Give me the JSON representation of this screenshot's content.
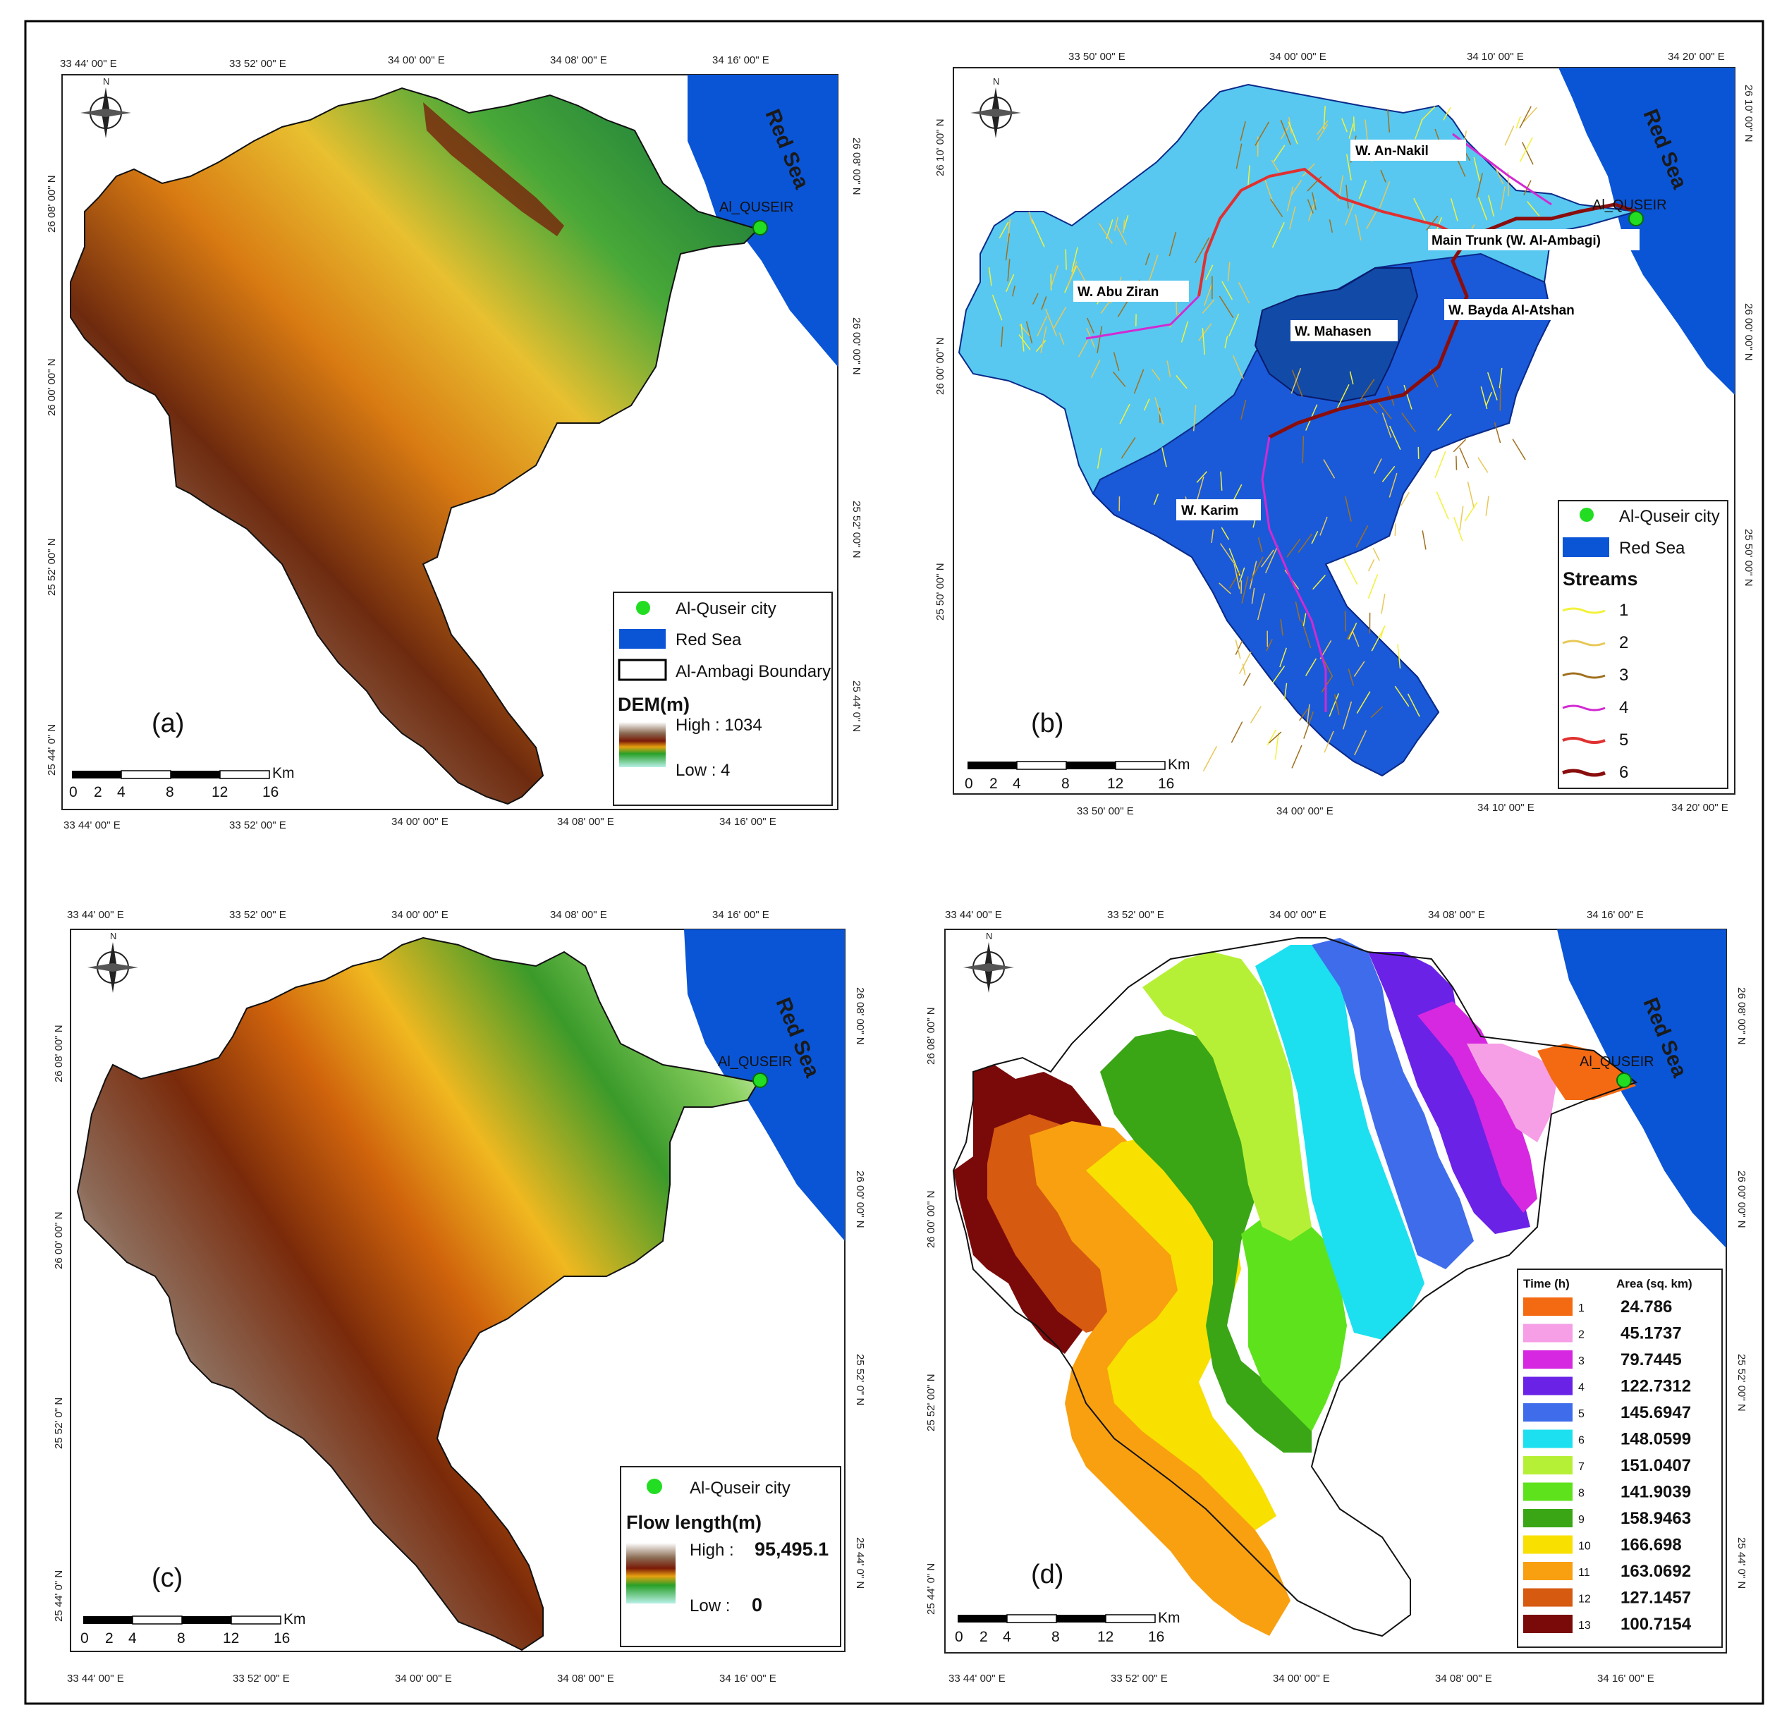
{
  "panels": {
    "a": {
      "letter": "(a)",
      "city_label": "Al_QUSEIR",
      "sea_label": "Red Sea",
      "legend": {
        "city": "Al-Quseir city",
        "sea": "Red Sea",
        "boundary": "Al-Ambagi Boundary",
        "ramp_title": "DEM(m)",
        "high": "High : 1034",
        "low": "Low : 4"
      },
      "top_ticks": [
        "33 44' 00\" E",
        "33 52' 00\" E",
        "34 00' 00\" E",
        "34 08' 00\" E",
        "34 16' 00\" E"
      ],
      "bottom_ticks": [
        "33 44' 00\" E",
        "33 52' 00\" E",
        "34 00' 00\" E",
        "34 08' 00\" E",
        "34 16' 00\" E"
      ],
      "left_ticks": [
        "26 08' 00\" N",
        "26 00' 00\" N",
        "25 52' 00\" N",
        "25 44' 0\" N"
      ],
      "right_ticks": [
        "26 08' 00\" N",
        "26 00' 00\" N",
        "25 52' 00\" N",
        "25 44' 0\" N"
      ]
    },
    "b": {
      "letter": "(b)",
      "city_label": "Al_QUSEIR",
      "sea_label": "Red Sea",
      "wadi_labels": [
        "W. An-Nakil",
        "Main Trunk (W. Al-Ambagi)",
        "W. Abu Ziran",
        "W. Bayda Al-Atshan",
        "W. Mahasen",
        "W. Karim"
      ],
      "legend": {
        "city": "Al-Quseir city",
        "sea": "Red Sea",
        "streams_title": "Streams",
        "orders": [
          "1",
          "2",
          "3",
          "4",
          "5",
          "6"
        ]
      },
      "top_ticks": [
        "33 50' 00\" E",
        "34 00' 00\" E",
        "34 10' 00\" E",
        "34 20' 00\" E"
      ],
      "bottom_ticks": [
        "33 50' 00\" E",
        "34 00' 00\" E",
        "34 10' 00\" E",
        "34 20' 00\" E"
      ],
      "left_ticks": [
        "26 10' 00\" N",
        "26 00' 00\" N",
        "25 50' 00\" N"
      ],
      "right_ticks": [
        "26 10' 00\" N",
        "26 00' 00\" N",
        "25 50' 00\" N"
      ]
    },
    "c": {
      "letter": "(c)",
      "city_label": "Al_QUSEIR",
      "sea_label": "Red Sea",
      "legend": {
        "city": "Al-Quseir city",
        "ramp_title": "Flow length(m)",
        "high_label": "High :",
        "high_value": "95,495.1",
        "low_label": "Low :",
        "low_value": "0"
      },
      "top_ticks": [
        "33 44' 00\" E",
        "33 52' 00\" E",
        "34 00' 00\" E",
        "34 08' 00\" E",
        "34 16' 00\" E"
      ],
      "bottom_ticks": [
        "33 44' 00\" E",
        "33 52' 00\" E",
        "34 00' 00\" E",
        "34 08' 00\" E",
        "34 16' 00\" E"
      ],
      "left_ticks": [
        "26 08' 00\" N",
        "26 00' 00\" N",
        "25 52' 0\" N",
        "25 44' 0\" N"
      ],
      "right_ticks": [
        "26 08' 00\" N",
        "26 00' 00\" N",
        "25 52' 0\" N",
        "25 44' 0\" N"
      ]
    },
    "d": {
      "letter": "(d)",
      "city_label": "Al_QUSEIR",
      "sea_label": "Red Sea",
      "legend": {
        "time_header": "Time (h)",
        "area_header": "Area (sq. km)",
        "rows": [
          {
            "time": "1",
            "area": "24.786",
            "color": "#f46a12"
          },
          {
            "time": "2",
            "area": "45.1737",
            "color": "#f69ee6"
          },
          {
            "time": "3",
            "area": "79.7445",
            "color": "#d628e0"
          },
          {
            "time": "4",
            "area": "122.7312",
            "color": "#6a22e6"
          },
          {
            "time": "5",
            "area": "145.6947",
            "color": "#3f6cea"
          },
          {
            "time": "6",
            "area": "148.0599",
            "color": "#1ce0f0"
          },
          {
            "time": "7",
            "area": "151.0407",
            "color": "#b6f036"
          },
          {
            "time": "8",
            "area": "141.9039",
            "color": "#5ee21c"
          },
          {
            "time": "9",
            "area": "158.9463",
            "color": "#3aa616"
          },
          {
            "time": "10",
            "area": "166.698",
            "color": "#f8e000"
          },
          {
            "time": "11",
            "area": "163.0692",
            "color": "#f8a010"
          },
          {
            "time": "12",
            "area": "127.1457",
            "color": "#d65a10"
          },
          {
            "time": "13",
            "area": "100.7154",
            "color": "#7a0a0a"
          }
        ]
      },
      "top_ticks": [
        "33 44' 00\" E",
        "33 52' 00\" E",
        "34 00' 00\" E",
        "34 08' 00\" E",
        "34 16' 00\" E"
      ],
      "bottom_ticks": [
        "33 44' 00\" E",
        "33 52' 00\" E",
        "34 00' 00\" E",
        "34 08' 00\" E",
        "34 16' 00\" E"
      ],
      "left_ticks": [
        "26 08' 00\" N",
        "26 00' 00\" N",
        "25 52' 00\" N",
        "25 44' 0\" N"
      ],
      "right_ticks": [
        "26 08' 00\" N",
        "26 00' 00\" N",
        "25 52' 00\" N",
        "25 44' 0\" N"
      ]
    }
  },
  "scale_bar": {
    "unit": "Km",
    "labels": [
      "0",
      "2",
      "4",
      "8",
      "12",
      "16"
    ]
  },
  "colors": {
    "sea": "#0a55d6",
    "city": "#22dd22",
    "stream_1": "#f2f23a",
    "stream_2": "#e8c858",
    "stream_3": "#a0701e",
    "stream_4": "#d22ad2",
    "stream_5": "#e03030",
    "stream_6": "#8a0d0d"
  }
}
